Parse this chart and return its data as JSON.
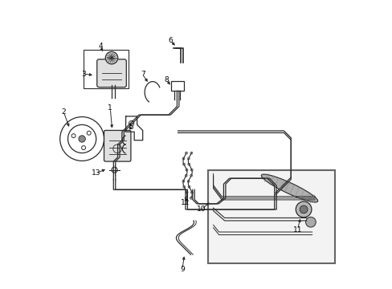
{
  "background_color": "#ffffff",
  "line_color": "#2a2a2a",
  "label_color": "#000000",
  "figsize": [
    4.89,
    3.6
  ],
  "dpi": 100,
  "xlim": [
    0,
    10.2
  ],
  "ylim": [
    0,
    10.2
  ]
}
